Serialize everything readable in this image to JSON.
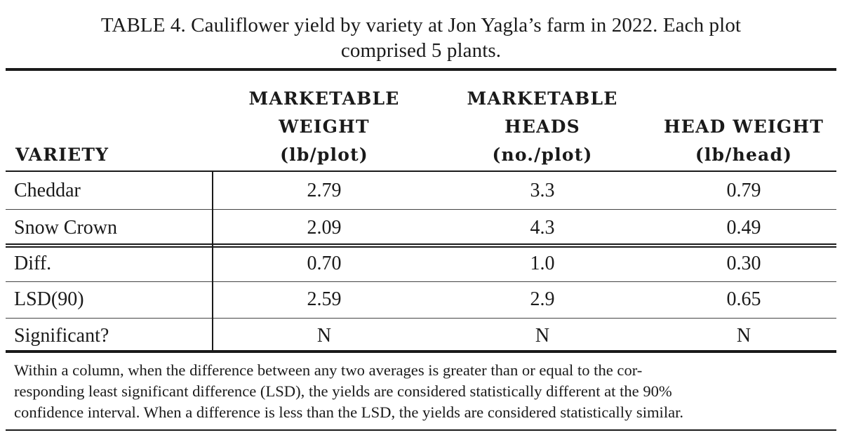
{
  "caption": {
    "line1": "TABLE 4. Cauliflower yield by variety at Jon Yagla’s farm in 2022. Each plot",
    "line2": "comprised 5 plants."
  },
  "columns": [
    {
      "lines": [
        "VARIETY"
      ]
    },
    {
      "lines": [
        "MARKETABLE",
        "WEIGHT",
        "(lb/plot)"
      ]
    },
    {
      "lines": [
        "MARKETABLE",
        "HEADS",
        "(no./plot)"
      ]
    },
    {
      "lines": [
        "HEAD WEIGHT",
        "(lb/head)"
      ]
    }
  ],
  "rows": [
    {
      "label": "Cheddar",
      "values": [
        "2.79",
        "3.3",
        "0.79"
      ]
    },
    {
      "label": "Snow Crown",
      "values": [
        "2.09",
        "4.3",
        "0.49"
      ]
    },
    {
      "label": "Diff.",
      "values": [
        "0.70",
        "1.0",
        "0.30"
      ]
    },
    {
      "label": "LSD(90)",
      "values": [
        "2.59",
        "2.9",
        "0.65"
      ]
    },
    {
      "label": "Significant?",
      "values": [
        "N",
        "N",
        "N"
      ]
    }
  ],
  "footnote": {
    "line1": "Within a column, when the difference between any two averages is greater than or equal to the cor-",
    "line2": "responding least significant difference (LSD), the yields are considered statistically different at the 90%",
    "line3": "confidence interval. When a difference is less than the LSD, the yields are considered statistically similar."
  }
}
